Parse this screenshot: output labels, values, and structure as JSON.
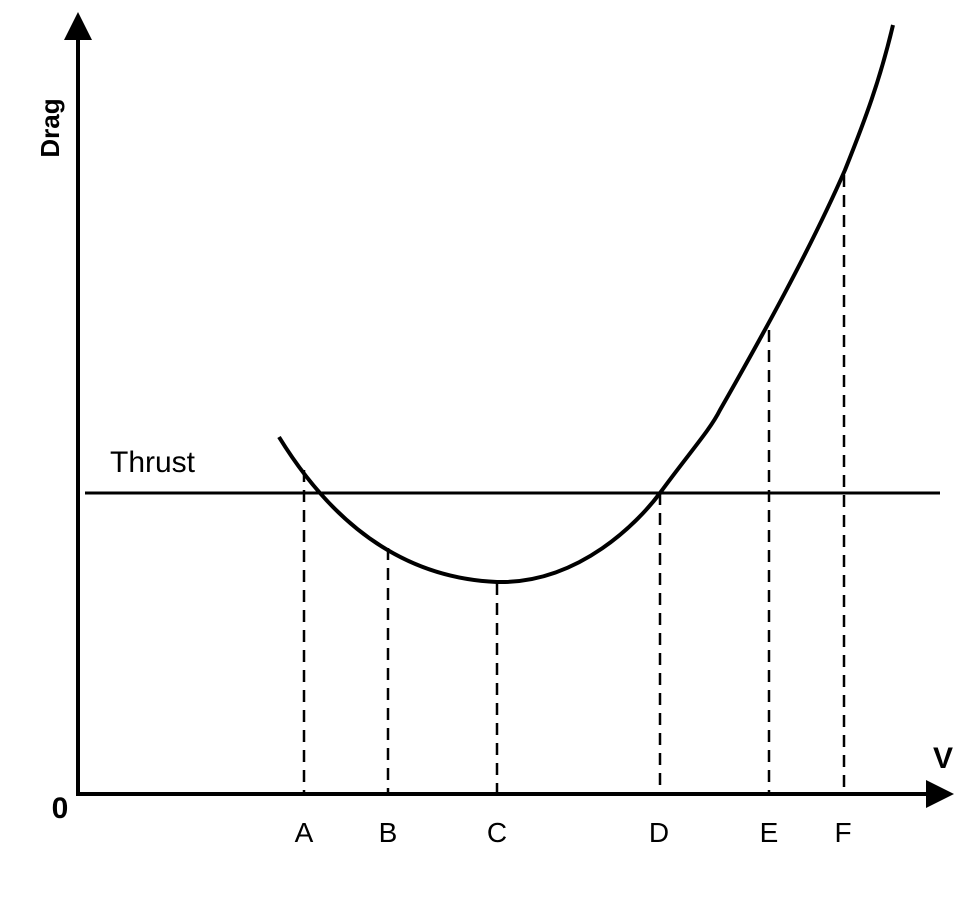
{
  "diagram": {
    "y_axis_label": "Drag",
    "x_axis_label": "V",
    "origin_label": "0",
    "thrust_label": "Thrust",
    "speed_markers": [
      {
        "label": "A"
      },
      {
        "label": "B"
      },
      {
        "label": "C"
      },
      {
        "label": "D"
      },
      {
        "label": "E"
      },
      {
        "label": "F"
      }
    ],
    "colors": {
      "lines": "#000000",
      "background": "#ffffff"
    }
  }
}
